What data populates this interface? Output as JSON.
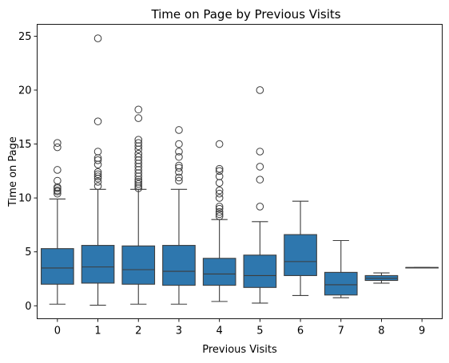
{
  "chart_data": {
    "type": "box",
    "title": "Time on Page by Previous Visits",
    "xlabel": "Previous Visits",
    "ylabel": "Time on Page",
    "categories": [
      "0",
      "1",
      "2",
      "3",
      "4",
      "5",
      "6",
      "7",
      "8",
      "9"
    ],
    "ylim": [
      -1.2,
      26.1
    ],
    "yticks": [
      0,
      5,
      10,
      15,
      20,
      25
    ],
    "grid": false,
    "color": "#2e77ae",
    "boxes": [
      {
        "category": "0",
        "whisker_low": 0.15,
        "q1": 2.0,
        "median": 3.5,
        "q3": 5.3,
        "whisker_high": 9.9,
        "outliers": [
          10.4,
          10.6,
          10.7,
          10.9,
          11.0,
          11.6,
          12.6,
          14.7,
          15.1
        ]
      },
      {
        "category": "1",
        "whisker_low": 0.05,
        "q1": 2.1,
        "median": 3.6,
        "q3": 5.6,
        "whisker_high": 10.8,
        "outliers": [
          11.1,
          11.5,
          11.8,
          12.0,
          12.2,
          12.4,
          13.1,
          13.5,
          13.7,
          14.3,
          17.1,
          24.8
        ]
      },
      {
        "category": "2",
        "whisker_low": 0.15,
        "q1": 2.0,
        "median": 3.35,
        "q3": 5.55,
        "whisker_high": 10.8,
        "outliers": [
          10.9,
          11.1,
          11.3,
          11.5,
          11.7,
          12.0,
          12.3,
          12.6,
          12.9,
          13.2,
          13.5,
          13.8,
          14.1,
          14.5,
          14.8,
          15.1,
          15.4,
          17.4,
          18.2
        ]
      },
      {
        "category": "3",
        "whisker_low": 0.15,
        "q1": 1.9,
        "median": 3.2,
        "q3": 5.6,
        "whisker_high": 10.8,
        "outliers": [
          11.6,
          11.9,
          12.4,
          12.8,
          13.0,
          13.8,
          14.3,
          15.0,
          16.3
        ]
      },
      {
        "category": "4",
        "whisker_low": 0.4,
        "q1": 1.9,
        "median": 2.95,
        "q3": 4.4,
        "whisker_high": 8.0,
        "outliers": [
          8.3,
          8.5,
          8.7,
          9.0,
          9.2,
          10.0,
          10.4,
          10.7,
          11.4,
          12.0,
          12.5,
          12.7,
          15.0
        ]
      },
      {
        "category": "5",
        "whisker_low": 0.25,
        "q1": 1.7,
        "median": 2.8,
        "q3": 4.7,
        "whisker_high": 7.8,
        "outliers": [
          9.2,
          11.7,
          12.9,
          14.3,
          20.0
        ]
      },
      {
        "category": "6",
        "whisker_low": 0.95,
        "q1": 2.8,
        "median": 4.1,
        "q3": 6.6,
        "whisker_high": 9.7,
        "outliers": []
      },
      {
        "category": "7",
        "whisker_low": 0.75,
        "q1": 1.0,
        "median": 1.95,
        "q3": 3.1,
        "whisker_high": 6.05,
        "outliers": []
      },
      {
        "category": "8",
        "whisker_low": 2.1,
        "q1": 2.35,
        "median": 2.55,
        "q3": 2.8,
        "whisker_high": 3.05,
        "outliers": []
      },
      {
        "category": "9",
        "whisker_low": 3.55,
        "q1": 3.55,
        "median": 3.55,
        "q3": 3.55,
        "whisker_high": 3.55,
        "outliers": []
      }
    ]
  }
}
